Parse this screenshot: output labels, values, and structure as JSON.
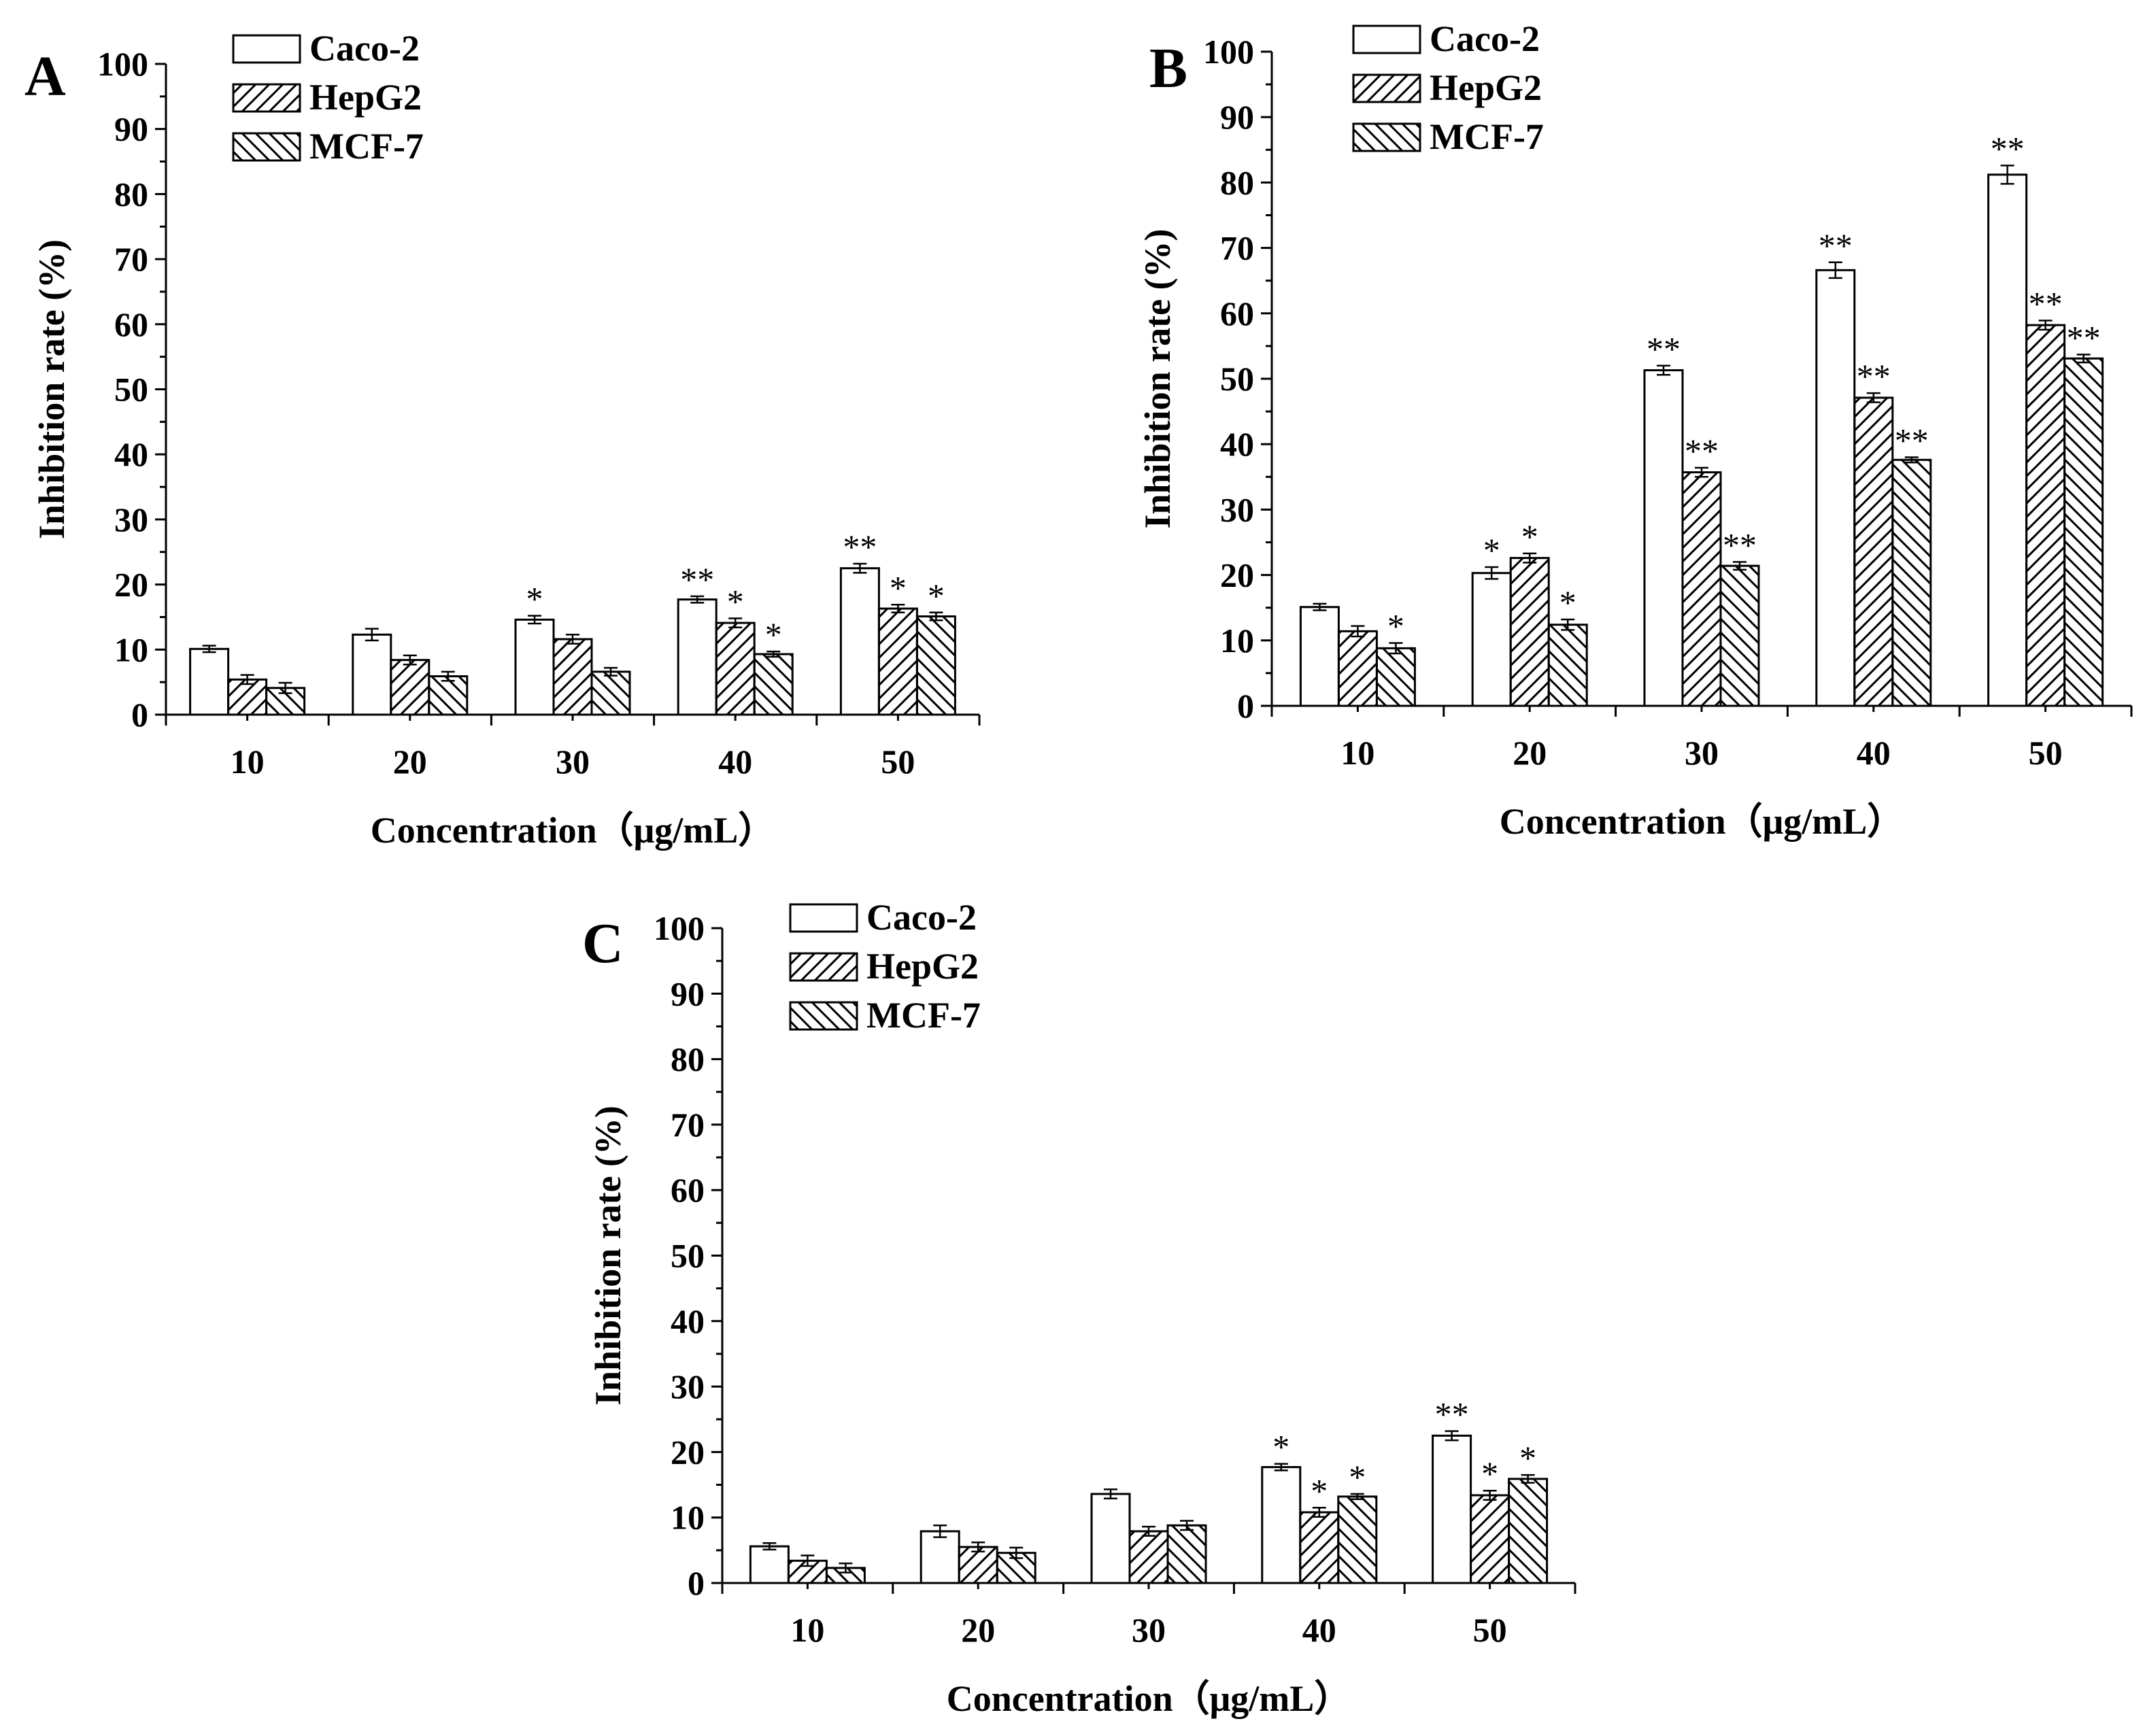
{
  "chart_data": [
    {
      "type": "bar",
      "panel": "A",
      "title": "",
      "xlabel": "Concentration（μg/mL）",
      "ylabel": "Inhibition rate (%)",
      "ylim": [
        0,
        100
      ],
      "yticks": [
        0,
        10,
        20,
        30,
        40,
        50,
        60,
        70,
        80,
        90,
        100
      ],
      "categories": [
        "10",
        "20",
        "30",
        "40",
        "50"
      ],
      "legend_position": "top-left",
      "series": [
        {
          "name": "Caco-2",
          "pattern": "open",
          "values": [
            10.1,
            12.3,
            14.6,
            17.7,
            22.5
          ],
          "errors": [
            0.5,
            0.9,
            0.6,
            0.5,
            0.7
          ],
          "significance": [
            "",
            "",
            "*",
            "**",
            "**"
          ]
        },
        {
          "name": "HepG2",
          "pattern": "hatch-forward",
          "values": [
            5.4,
            8.4,
            11.6,
            14.1,
            16.3
          ],
          "errors": [
            0.7,
            0.7,
            0.7,
            0.7,
            0.6
          ],
          "significance": [
            "",
            "",
            "",
            "*",
            "*"
          ]
        },
        {
          "name": "MCF-7",
          "pattern": "hatch-backward",
          "values": [
            4.1,
            5.9,
            6.6,
            9.3,
            15.1
          ],
          "errors": [
            0.8,
            0.7,
            0.6,
            0.4,
            0.6
          ],
          "significance": [
            "",
            "",
            "",
            "*",
            "*"
          ]
        }
      ]
    },
    {
      "type": "bar",
      "panel": "B",
      "title": "",
      "xlabel": "Concentration（μg/mL）",
      "ylabel": "Inhibition rate (%)",
      "ylim": [
        0,
        100
      ],
      "yticks": [
        0,
        10,
        20,
        30,
        40,
        50,
        60,
        70,
        80,
        90,
        100
      ],
      "categories": [
        "10",
        "20",
        "30",
        "40",
        "50"
      ],
      "legend_position": "top-left",
      "series": [
        {
          "name": "Caco-2",
          "pattern": "open",
          "values": [
            15.1,
            20.3,
            51.3,
            66.6,
            81.2
          ],
          "errors": [
            0.5,
            0.9,
            0.7,
            1.2,
            1.4
          ],
          "significance": [
            "",
            "*",
            "**",
            "**",
            "**"
          ]
        },
        {
          "name": "HepG2",
          "pattern": "hatch-forward",
          "values": [
            11.4,
            22.6,
            35.7,
            47.1,
            58.2
          ],
          "errors": [
            0.8,
            0.7,
            0.7,
            0.7,
            0.7
          ],
          "significance": [
            "",
            "*",
            "**",
            "**",
            "**"
          ]
        },
        {
          "name": "MCF-7",
          "pattern": "hatch-backward",
          "values": [
            8.8,
            12.4,
            21.4,
            37.6,
            53.1
          ],
          "errors": [
            0.8,
            0.8,
            0.6,
            0.4,
            0.6
          ],
          "significance": [
            "*",
            "*",
            "**",
            "**",
            "**"
          ]
        }
      ]
    },
    {
      "type": "bar",
      "panel": "C",
      "title": "",
      "xlabel": "Concentration（μg/mL）",
      "ylabel": "Inhibition rate (%)",
      "ylim": [
        0,
        100
      ],
      "yticks": [
        0,
        10,
        20,
        30,
        40,
        50,
        60,
        70,
        80,
        90,
        100
      ],
      "categories": [
        "10",
        "20",
        "30",
        "40",
        "50"
      ],
      "legend_position": "top-left",
      "series": [
        {
          "name": "Caco-2",
          "pattern": "open",
          "values": [
            5.6,
            7.9,
            13.6,
            17.7,
            22.5
          ],
          "errors": [
            0.5,
            0.9,
            0.7,
            0.5,
            0.7
          ],
          "significance": [
            "",
            "",
            "",
            "*",
            "**"
          ]
        },
        {
          "name": "HepG2",
          "pattern": "hatch-forward",
          "values": [
            3.4,
            5.5,
            7.9,
            10.8,
            13.4
          ],
          "errors": [
            0.8,
            0.7,
            0.7,
            0.7,
            0.7
          ],
          "significance": [
            "",
            "",
            "",
            "*",
            "*"
          ]
        },
        {
          "name": "MCF-7",
          "pattern": "hatch-backward",
          "values": [
            2.3,
            4.6,
            8.8,
            13.2,
            15.9
          ],
          "errors": [
            0.7,
            0.8,
            0.7,
            0.4,
            0.6
          ],
          "significance": [
            "",
            "",
            "",
            "*",
            "*"
          ]
        }
      ]
    }
  ]
}
